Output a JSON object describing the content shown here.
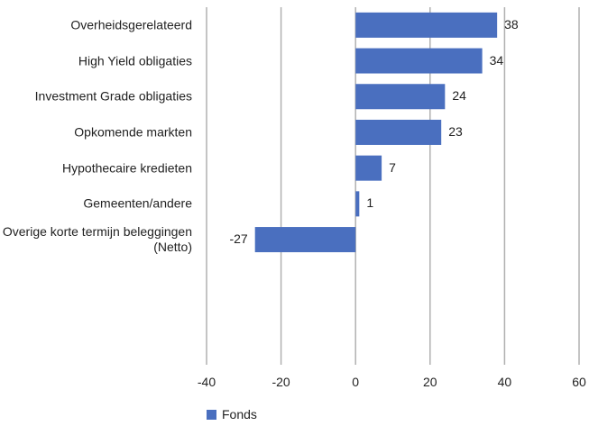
{
  "chart_data": {
    "type": "barh",
    "categories": [
      "Overheidsgerelateerd",
      "High Yield obligaties",
      "Investment Grade obligaties",
      "Opkomende markten",
      "Hypothecaire kredieten",
      "Gemeenten/andere",
      "Overige korte termijn beleggingen (Netto)",
      null,
      null,
      null
    ],
    "series": [
      {
        "name": "Fonds",
        "color": "#4a6fbf",
        "values": [
          38,
          34,
          24,
          23,
          7,
          1,
          -27,
          null,
          null,
          null
        ]
      }
    ],
    "xlim": [
      -40,
      60
    ],
    "xticks": [
      -40,
      -20,
      0,
      20,
      40,
      60
    ],
    "grid": true,
    "legend": "bottom"
  }
}
